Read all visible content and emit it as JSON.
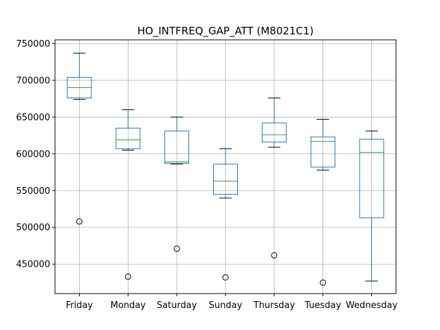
{
  "chart_data": {
    "type": "box",
    "title": "HO_INTFREQ_GAP_ATT (M8021C1)",
    "xlabel": "",
    "ylabel": "",
    "ylim": [
      410000,
      755000
    ],
    "yticks": [
      450000,
      500000,
      550000,
      600000,
      650000,
      700000,
      750000
    ],
    "ytick_labels": [
      "450000",
      "500000",
      "550000",
      "600000",
      "650000",
      "700000",
      "750000"
    ],
    "grid": true,
    "categories": [
      "Friday",
      "Monday",
      "Saturday",
      "Sunday",
      "Thursday",
      "Tuesday",
      "Wednesday"
    ],
    "boxes": [
      {
        "category": "Friday",
        "whisker_low": 674000,
        "q1": 676000,
        "median": 690000,
        "q3": 704000,
        "whisker_high": 737000,
        "outliers": [
          508000
        ]
      },
      {
        "category": "Monday",
        "whisker_low": 605000,
        "q1": 607000,
        "median": 619000,
        "q3": 635000,
        "whisker_high": 660000,
        "outliers": [
          433000
        ]
      },
      {
        "category": "Saturday",
        "whisker_low": 586000,
        "q1": 587000,
        "median": 589000,
        "q3": 631000,
        "whisker_high": 650000,
        "outliers": [
          471000
        ]
      },
      {
        "category": "Sunday",
        "whisker_low": 540000,
        "q1": 545000,
        "median": 563000,
        "q3": 586000,
        "whisker_high": 607000,
        "outliers": [
          432000
        ]
      },
      {
        "category": "Thursday",
        "whisker_low": 609000,
        "q1": 616000,
        "median": 626000,
        "q3": 642000,
        "whisker_high": 676000,
        "outliers": [
          462000
        ]
      },
      {
        "category": "Tuesday",
        "whisker_low": 578000,
        "q1": 582000,
        "median": 617000,
        "q3": 623000,
        "whisker_high": 647000,
        "outliers": [
          425000
        ]
      },
      {
        "category": "Wednesday",
        "whisker_low": 427000,
        "q1": 513000,
        "median": 602000,
        "q3": 620000,
        "whisker_high": 631000,
        "outliers": []
      }
    ],
    "colors": {
      "box": "#1f77b4",
      "median": "#2ca02c",
      "whisker_cap": "#000000",
      "grid": "#b0b0b0",
      "outlier": "#000000"
    }
  }
}
